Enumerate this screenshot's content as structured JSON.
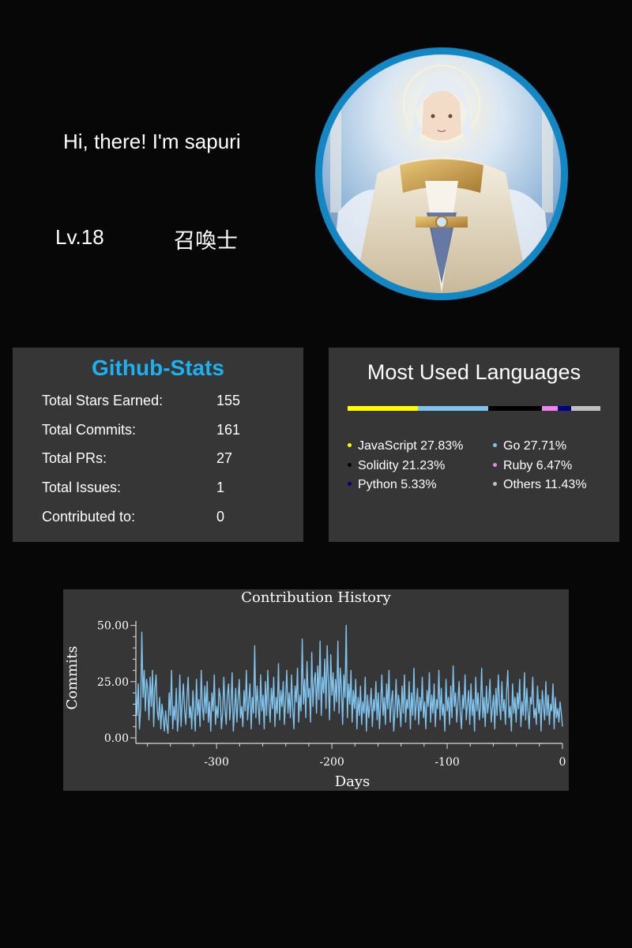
{
  "profile": {
    "greeting": "Hi, there! I'm sapuri",
    "level": "Lv.18",
    "title": "召喚士",
    "avatar_ring_color": "#1387c4"
  },
  "github_stats": {
    "title": "Github-Stats",
    "title_color": "#1cb1f0",
    "rows": [
      {
        "label": "Total Stars Earned:",
        "value": "155"
      },
      {
        "label": "Total Commits:",
        "value": "161"
      },
      {
        "label": "Total PRs:",
        "value": "27"
      },
      {
        "label": "Total Issues:",
        "value": "1"
      },
      {
        "label": "Contributed to:",
        "value": "0"
      }
    ]
  },
  "languages": {
    "title": "Most Used Languages",
    "items": [
      {
        "name": "JavaScript 27.83%",
        "percent": 27.83,
        "color": "#ffff00"
      },
      {
        "name": "Go 27.71%",
        "percent": 27.71,
        "color": "#80c3ec"
      },
      {
        "name": "Solidity 21.23%",
        "percent": 21.23,
        "color": "#000000"
      },
      {
        "name": "Ruby 6.47%",
        "percent": 6.47,
        "color": "#ee82ee"
      },
      {
        "name": "Python 5.33%",
        "percent": 5.33,
        "color": "#000080"
      },
      {
        "name": "Others 11.43%",
        "percent": 11.43,
        "color": "#c0c0c0"
      }
    ]
  },
  "chart_data": {
    "type": "line",
    "title": "Contribution History",
    "xlabel": "Days",
    "ylabel": "Commits",
    "xlim": [
      -370,
      0
    ],
    "ylim": [
      0,
      52
    ],
    "xticks": [
      -300,
      -200,
      -100,
      0
    ],
    "xtick_labels": [
      "-300",
      "-200",
      "-100",
      "0"
    ],
    "yticks": [
      0,
      25,
      50
    ],
    "ytick_labels": [
      "0.00",
      "25.00",
      "50.00"
    ],
    "grid": false,
    "line_color": "#80c3ec",
    "series": [
      {
        "values": [
          22,
          10,
          24,
          4,
          13,
          47,
          18,
          30,
          12,
          26,
          22,
          8,
          27,
          14,
          30,
          5,
          22,
          28,
          12,
          8,
          18,
          4,
          15,
          9,
          3,
          12,
          6,
          2,
          20,
          10,
          30,
          4,
          14,
          8,
          22,
          3,
          10,
          28,
          5,
          16,
          24,
          12,
          6,
          18,
          27,
          9,
          14,
          4,
          21,
          12,
          3,
          26,
          10,
          17,
          5,
          30,
          14,
          8,
          23,
          11,
          25,
          7,
          16,
          3,
          20,
          12,
          28,
          6,
          14,
          9,
          22,
          18,
          4,
          11,
          27,
          13,
          6,
          19,
          24,
          8,
          15,
          29,
          3,
          12,
          22,
          7,
          17,
          26,
          9,
          14,
          5,
          21,
          12,
          30,
          8,
          16,
          24,
          4,
          18,
          11,
          41,
          9,
          23,
          14,
          6,
          28,
          12,
          19,
          4,
          25,
          10,
          30,
          15,
          7,
          22,
          13,
          27,
          5,
          18,
          11,
          33,
          8,
          21,
          14,
          25,
          6,
          17,
          30,
          11,
          20,
          9,
          28,
          13,
          4,
          23,
          16,
          31,
          7,
          19,
          12,
          44,
          15,
          26,
          9,
          34,
          18,
          22,
          7,
          38,
          14,
          25,
          29,
          11,
          32,
          17,
          43,
          10,
          27,
          20,
          35,
          13,
          41,
          24,
          8,
          37,
          19,
          29,
          12,
          26,
          16,
          43,
          11,
          31,
          22,
          6,
          28,
          18,
          50,
          9,
          24,
          15,
          30,
          7,
          21,
          13,
          26,
          4,
          18,
          10,
          23,
          6,
          16,
          11,
          27,
          3,
          19,
          9,
          14,
          22,
          5,
          17,
          12,
          25,
          8,
          20,
          4,
          15,
          28,
          10,
          18,
          6,
          24,
          13,
          30,
          7,
          16,
          21,
          3,
          12,
          26,
          9,
          19,
          14,
          5,
          23,
          11,
          28,
          7,
          17,
          13,
          25,
          4,
          20,
          10,
          31,
          8,
          15,
          22,
          6,
          18,
          12,
          27,
          9,
          16,
          4,
          21,
          14,
          29,
          7,
          19,
          11,
          24,
          5,
          17,
          13,
          30,
          8,
          22,
          10,
          15,
          3,
          26,
          12,
          18,
          6,
          23,
          9,
          32,
          14,
          20,
          7,
          16,
          25,
          11,
          4,
          19,
          13,
          28,
          8,
          15,
          21,
          6,
          24,
          10,
          17,
          3,
          27,
          12,
          20,
          8,
          14,
          31,
          9,
          18,
          5,
          23,
          11,
          16,
          26,
          7,
          13,
          19,
          4,
          22,
          10,
          28,
          15,
          8,
          25,
          12,
          17,
          6,
          21,
          30,
          9,
          14,
          3,
          24,
          11,
          18,
          7,
          20,
          13,
          26,
          5,
          16,
          10,
          29,
          8,
          22,
          12,
          4,
          18,
          15,
          27,
          9,
          13,
          6,
          23,
          11,
          17,
          3,
          21,
          14,
          8,
          25,
          10,
          19,
          6,
          15,
          12,
          24,
          4,
          18,
          9,
          13,
          7,
          16,
          11,
          5
        ]
      }
    ]
  }
}
